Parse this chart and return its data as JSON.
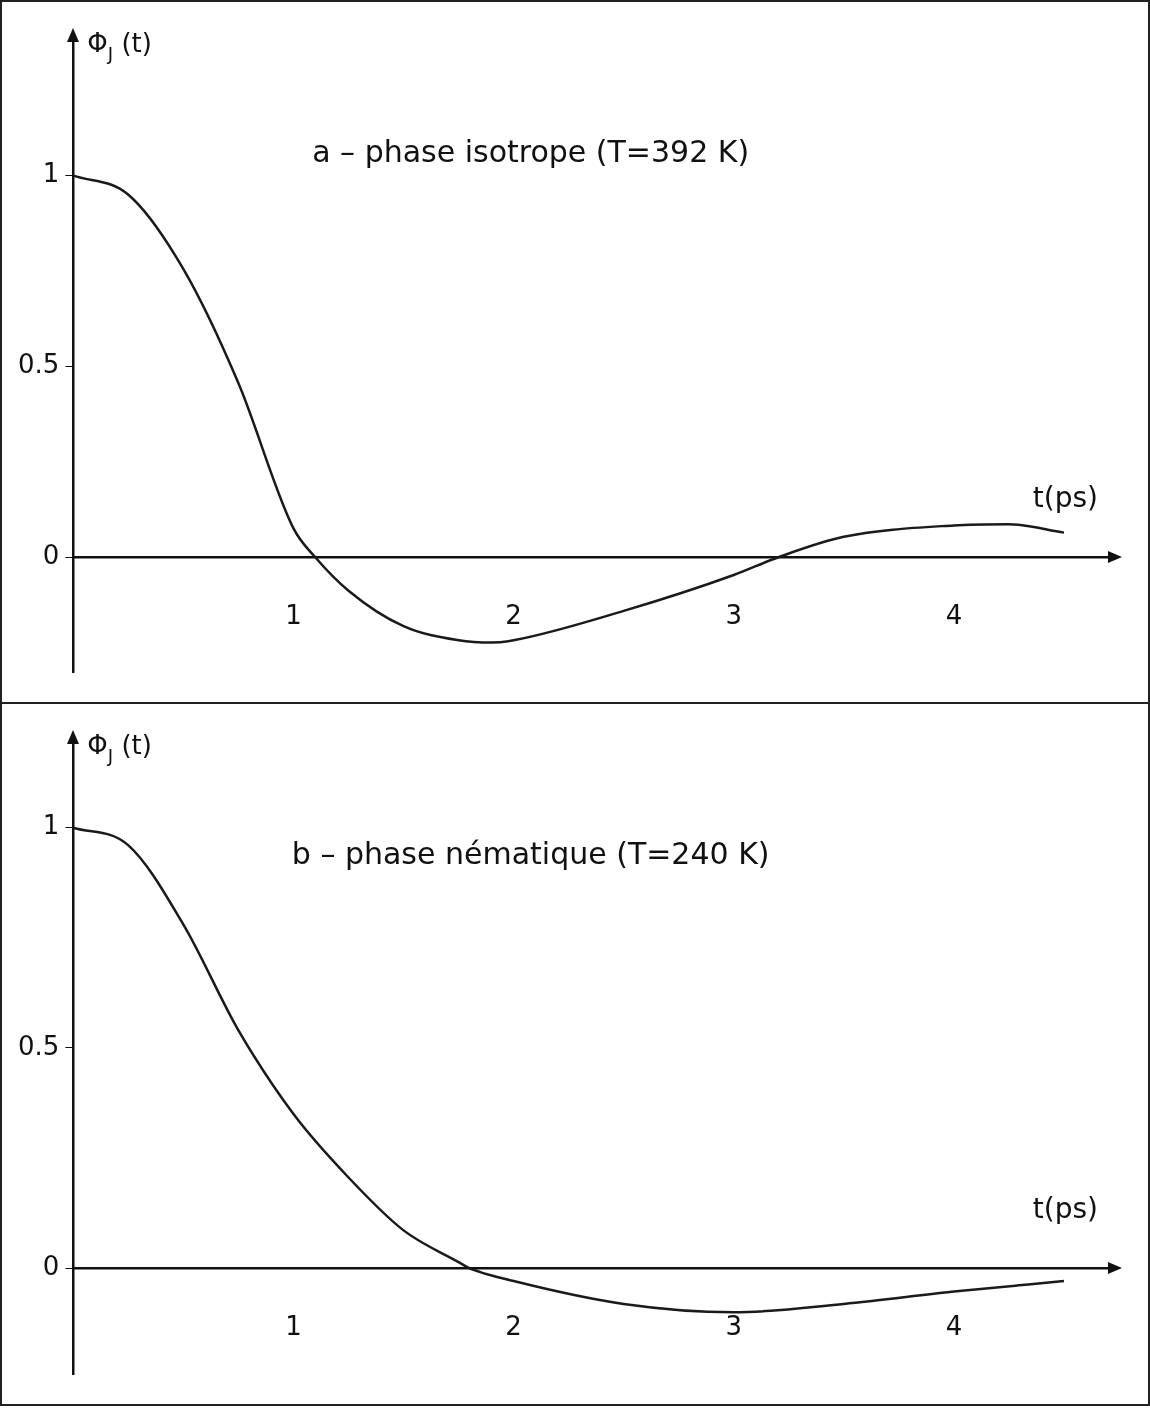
{
  "chart_data": [
    {
      "type": "line",
      "ylabel": "Φ$_{J}$ (t)",
      "xlabel": "t(ps)",
      "annotations": [
        "a – phase isotrope (T=392 K)"
      ],
      "x": [
        0,
        0.25,
        0.5,
        0.75,
        1,
        1.1,
        1.25,
        1.5,
        1.75,
        1.9,
        2,
        2.5,
        3,
        3.2,
        3.5,
        4,
        4.25,
        4.5
      ],
      "series": [
        {
          "color": "#1a1a1a",
          "values": [
            1,
            0.95,
            0.755,
            0.456,
            0.076,
            0,
            -0.087,
            -0.18,
            -0.217,
            -0.223,
            -0.217,
            -0.14,
            -0.046,
            0,
            0.054,
            0.084,
            0.087,
            0.065
          ]
        }
      ],
      "xlim": [
        0,
        4.7
      ],
      "ylim": [
        -0.3,
        1.35
      ],
      "xticks": [
        1,
        2,
        3,
        4
      ],
      "yticks": [
        0,
        0.5,
        1
      ]
    },
    {
      "type": "line",
      "ylabel": "Φ$_{J}$ (t)",
      "xlabel": "t(ps)",
      "annotations": [
        "b – phase nématique (T=240 K)"
      ],
      "x": [
        0,
        0.25,
        0.5,
        0.75,
        1,
        1.25,
        1.5,
        1.75,
        1.8,
        2,
        2.5,
        3,
        3.5,
        4,
        4.5
      ],
      "series": [
        {
          "color": "#1a1a1a",
          "values": [
            1,
            0.96,
            0.78,
            0.54,
            0.35,
            0.206,
            0.086,
            0.014,
            0,
            -0.029,
            -0.081,
            -0.1,
            -0.081,
            -0.053,
            -0.029
          ]
        }
      ],
      "xlim": [
        0,
        4.7
      ],
      "ylim": [
        -0.24,
        1.19
      ],
      "xticks": [
        1,
        2,
        3,
        4
      ],
      "yticks": [
        0,
        0.5,
        1
      ]
    }
  ]
}
